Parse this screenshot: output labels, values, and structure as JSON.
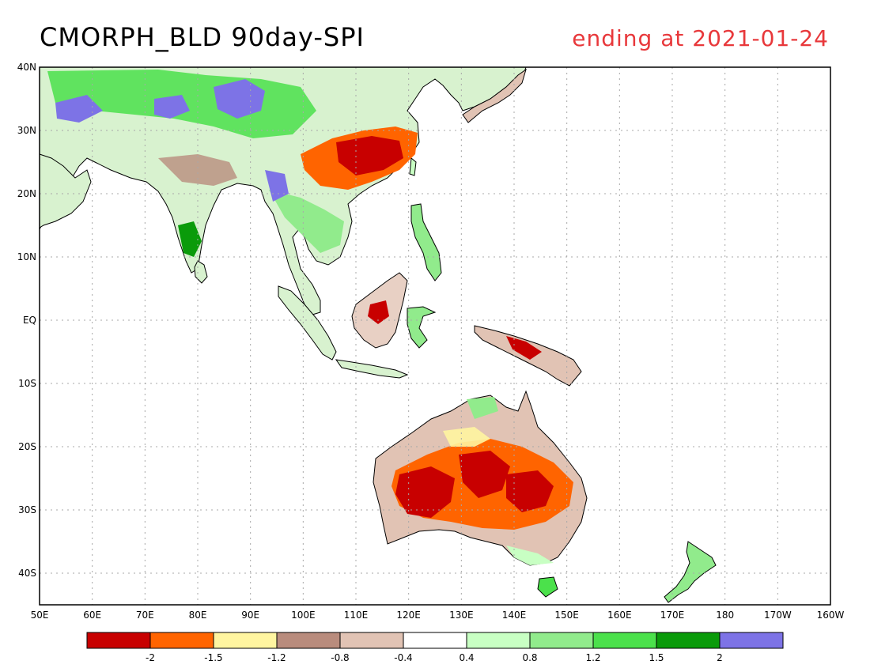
{
  "title": "CMORPH_BLD 90day-SPI",
  "subtitle": "ending at 2021-01-24",
  "map": {
    "lon_range": [
      50,
      200
    ],
    "lat_range": [
      -45,
      40
    ],
    "lat_labels": [
      "40N",
      "30N",
      "20N",
      "10N",
      "EQ",
      "10S",
      "20S",
      "30S",
      "40S"
    ],
    "lat_values": [
      40,
      30,
      20,
      10,
      0,
      -10,
      -20,
      -30,
      -40
    ],
    "lon_labels": [
      "50E",
      "60E",
      "70E",
      "80E",
      "90E",
      "100E",
      "110E",
      "120E",
      "130E",
      "140E",
      "150E",
      "160E",
      "170E",
      "180",
      "170W",
      "160W"
    ],
    "lon_values": [
      50,
      60,
      70,
      80,
      90,
      100,
      110,
      120,
      130,
      140,
      150,
      160,
      170,
      180,
      190,
      200
    ]
  },
  "legend": {
    "colors": [
      "#c80000",
      "#ff6400",
      "#fff5a0",
      "#b98c7d",
      "#e1c3b4",
      "#ffffff",
      "#c8ffc3",
      "#91eb8c",
      "#4be14b",
      "#0a9b0a",
      "#7d73e6"
    ],
    "labels": [
      "-2",
      "-1.5",
      "-1.2",
      "-0.8",
      "-0.4",
      "0.4",
      "0.8",
      "1.2",
      "1.5",
      "2"
    ]
  }
}
